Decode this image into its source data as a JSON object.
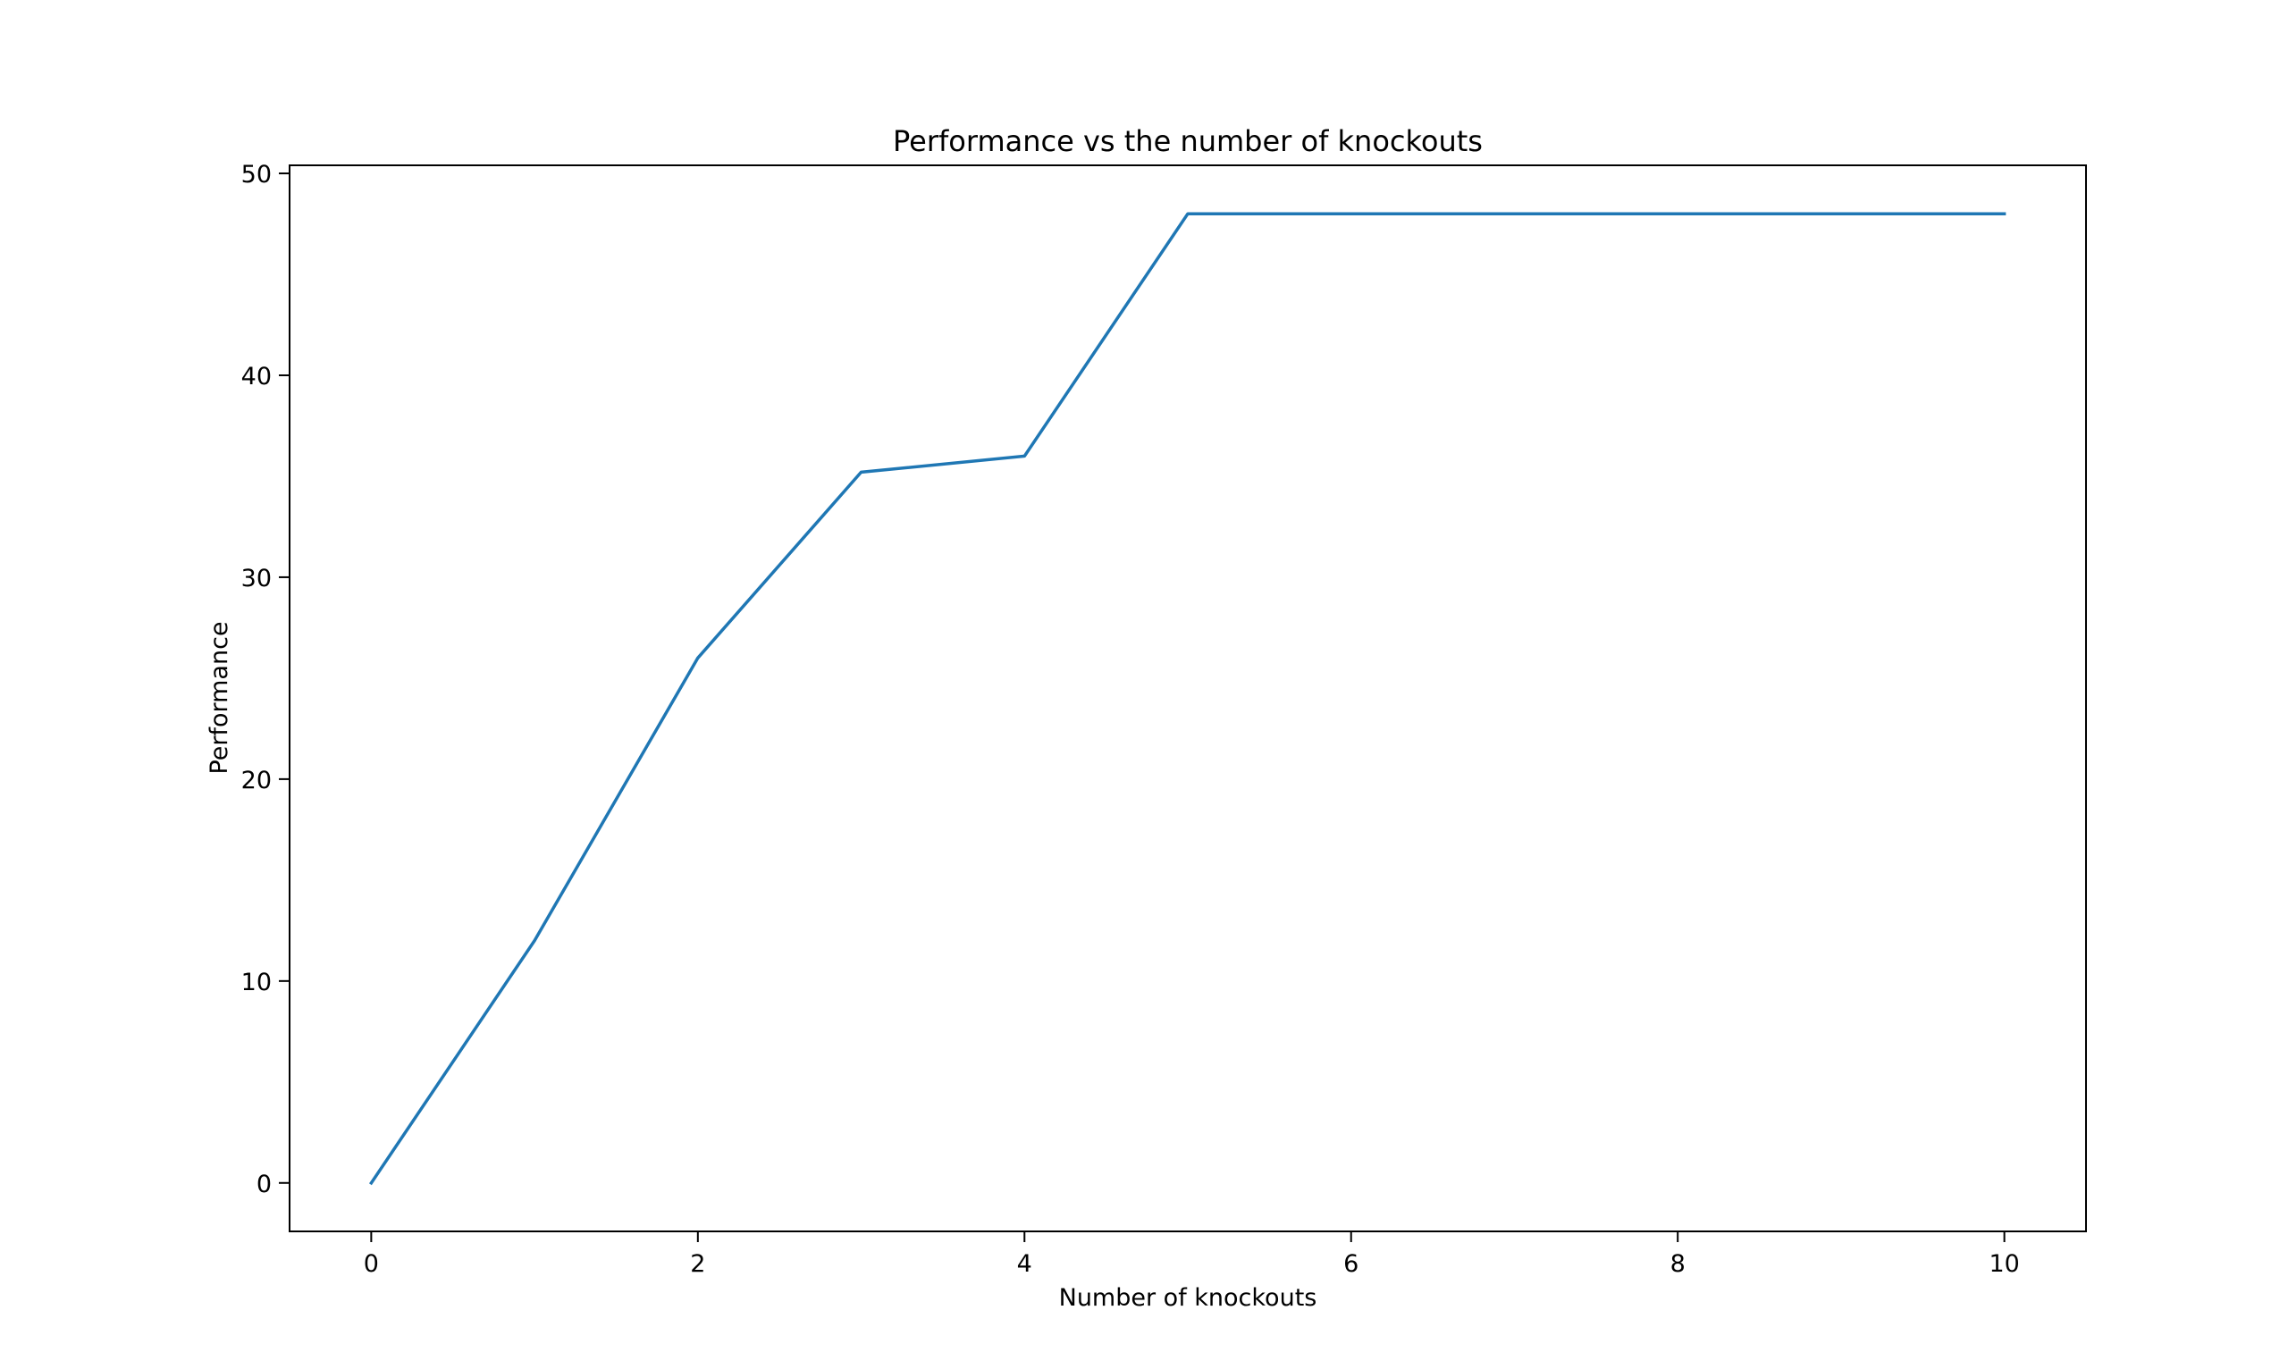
{
  "chart_data": {
    "type": "line",
    "title": "Performance vs the number of knockouts",
    "xlabel": "Number of knockouts",
    "ylabel": "Performance",
    "xlim": [
      -0.5,
      10.5
    ],
    "ylim": [
      -2.4,
      50.4
    ],
    "xticks": [
      0,
      2,
      4,
      6,
      8,
      10
    ],
    "yticks": [
      0,
      10,
      20,
      30,
      40,
      50
    ],
    "grid": false,
    "series": [
      {
        "color": "#1f77b4",
        "x": [
          0,
          1,
          2,
          3,
          4,
          5,
          6,
          7,
          8,
          9,
          10
        ],
        "y": [
          0,
          12,
          26,
          35.2,
          36,
          48,
          48,
          48,
          48,
          48,
          48
        ]
      }
    ]
  }
}
